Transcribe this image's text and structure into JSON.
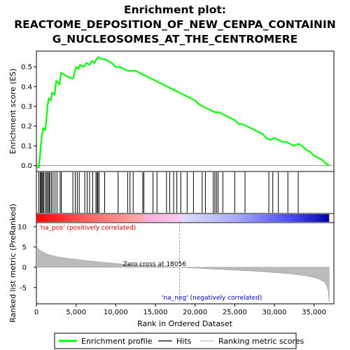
{
  "chart_data": {
    "type": "line",
    "title_line1": "Enrichment plot:",
    "title_line2": "REACTOME_DEPOSITION_OF_NEW_CENPA_CONTAININ",
    "title_line3": "G_NUCLEOSOMES_AT_THE_CENTROMERE",
    "xlabel": "Rank in Ordered Dataset",
    "ylabel_top": "Enrichment score (ES)",
    "ylabel_bottom": "Ranked list metric (PreRanked)",
    "x_ticks": [
      0,
      5000,
      10000,
      15000,
      20000,
      25000,
      30000,
      35000
    ],
    "x_tick_labels": [
      "0",
      "5,000",
      "10,000",
      "15,000",
      "20,000",
      "25,000",
      "30,000",
      "35,000"
    ],
    "xlim": [
      0,
      37500
    ],
    "es_ylim": [
      -0.03,
      0.58
    ],
    "es_y_ticks": [
      0.0,
      0.1,
      0.2,
      0.3,
      0.4,
      0.5
    ],
    "es_y_tick_labels": [
      "0.0",
      "0.1",
      "0.2",
      "0.3",
      "0.4",
      "0.5"
    ],
    "metric_ylim": [
      -9,
      11
    ],
    "metric_y_ticks": [
      10,
      5,
      0,
      -5
    ],
    "metric_y_tick_labels": [
      "10",
      "5",
      "0",
      "-5"
    ],
    "total_genes": 36900,
    "zero_cross": 18056,
    "zero_cross_label": "Zero cross at 18056",
    "pos_label": "'na_pos' (positively correlated)",
    "neg_label": "'na_neg' (negatively correlated)",
    "enrichment_profile": [
      [
        0,
        0.0
      ],
      [
        300,
        -0.01
      ],
      [
        450,
        0.05
      ],
      [
        550,
        0.1
      ],
      [
        700,
        0.15
      ],
      [
        850,
        0.19
      ],
      [
        1100,
        0.18
      ],
      [
        1250,
        0.23
      ],
      [
        1400,
        0.3
      ],
      [
        1550,
        0.34
      ],
      [
        1800,
        0.33
      ],
      [
        2000,
        0.37
      ],
      [
        2300,
        0.36
      ],
      [
        2500,
        0.43
      ],
      [
        2900,
        0.41
      ],
      [
        3100,
        0.47
      ],
      [
        3500,
        0.46
      ],
      [
        4000,
        0.45
      ],
      [
        4600,
        0.44
      ],
      [
        4800,
        0.47
      ],
      [
        5000,
        0.5
      ],
      [
        5300,
        0.49
      ],
      [
        5500,
        0.51
      ],
      [
        6000,
        0.5
      ],
      [
        6300,
        0.52
      ],
      [
        6700,
        0.51
      ],
      [
        7000,
        0.53
      ],
      [
        7300,
        0.52
      ],
      [
        7600,
        0.54
      ],
      [
        7800,
        0.55
      ],
      [
        8200,
        0.54
      ],
      [
        8600,
        0.54
      ],
      [
        9000,
        0.53
      ],
      [
        9500,
        0.52
      ],
      [
        10000,
        0.5
      ],
      [
        10500,
        0.5
      ],
      [
        11000,
        0.49
      ],
      [
        11500,
        0.48
      ],
      [
        12000,
        0.48
      ],
      [
        12500,
        0.48
      ],
      [
        13000,
        0.47
      ],
      [
        13500,
        0.46
      ],
      [
        14000,
        0.45
      ],
      [
        14500,
        0.44
      ],
      [
        15000,
        0.43
      ],
      [
        15500,
        0.42
      ],
      [
        16000,
        0.41
      ],
      [
        16500,
        0.4
      ],
      [
        17000,
        0.39
      ],
      [
        17500,
        0.38
      ],
      [
        18000,
        0.37
      ],
      [
        18500,
        0.36
      ],
      [
        19000,
        0.35
      ],
      [
        19500,
        0.34
      ],
      [
        20000,
        0.33
      ],
      [
        20500,
        0.31
      ],
      [
        21000,
        0.3
      ],
      [
        21500,
        0.29
      ],
      [
        22000,
        0.28
      ],
      [
        22500,
        0.27
      ],
      [
        23000,
        0.27
      ],
      [
        23500,
        0.26
      ],
      [
        24000,
        0.25
      ],
      [
        24500,
        0.24
      ],
      [
        25000,
        0.23
      ],
      [
        25500,
        0.21
      ],
      [
        26000,
        0.21
      ],
      [
        26500,
        0.2
      ],
      [
        27000,
        0.19
      ],
      [
        27500,
        0.18
      ],
      [
        28000,
        0.17
      ],
      [
        28500,
        0.16
      ],
      [
        29000,
        0.14
      ],
      [
        29500,
        0.13
      ],
      [
        30000,
        0.14
      ],
      [
        30500,
        0.13
      ],
      [
        31000,
        0.12
      ],
      [
        31500,
        0.12
      ],
      [
        32000,
        0.11
      ],
      [
        32500,
        0.1
      ],
      [
        33000,
        0.11
      ],
      [
        33500,
        0.1
      ],
      [
        34000,
        0.08
      ],
      [
        34500,
        0.07
      ],
      [
        35000,
        0.05
      ],
      [
        35500,
        0.04
      ],
      [
        36000,
        0.03
      ],
      [
        36500,
        0.01
      ],
      [
        36900,
        0.0
      ]
    ],
    "hits": [
      300,
      480,
      600,
      700,
      820,
      950,
      1150,
      1300,
      1450,
      1600,
      1700,
      1900,
      2100,
      2350,
      2600,
      3000,
      3150,
      4600,
      4900,
      5150,
      5400,
      6100,
      6400,
      6700,
      7100,
      7500,
      7650,
      7750,
      7900,
      8600,
      10300,
      11500,
      11800,
      12200,
      13400,
      13550,
      14700,
      15200,
      16400,
      16800,
      17300,
      17700,
      18200,
      19000,
      19800,
      20900,
      21300,
      22300,
      22500,
      22700,
      22900,
      23500,
      25000,
      26300,
      29300,
      29800,
      30500,
      31700,
      33000
    ],
    "metric_profile": [
      [
        0,
        5.6
      ],
      [
        150,
        4.8
      ],
      [
        400,
        4.2
      ],
      [
        800,
        3.7
      ],
      [
        1500,
        3.1
      ],
      [
        2500,
        2.6
      ],
      [
        4000,
        2.2
      ],
      [
        6000,
        1.7
      ],
      [
        8000,
        1.3
      ],
      [
        10000,
        0.9
      ],
      [
        12000,
        0.6
      ],
      [
        14000,
        0.4
      ],
      [
        16000,
        0.2
      ],
      [
        18056,
        0.0
      ],
      [
        20000,
        -0.2
      ],
      [
        22000,
        -0.4
      ],
      [
        24000,
        -0.6
      ],
      [
        26000,
        -0.8
      ],
      [
        28000,
        -1.0
      ],
      [
        30000,
        -1.3
      ],
      [
        32000,
        -1.6
      ],
      [
        34000,
        -2.1
      ],
      [
        35500,
        -2.8
      ],
      [
        36300,
        -3.6
      ],
      [
        36600,
        -4.5
      ],
      [
        36800,
        -6.0
      ],
      [
        36900,
        -8.5
      ]
    ],
    "legend": [
      {
        "label": "Enrichment profile",
        "color": "#00ff00",
        "style": "line-thick"
      },
      {
        "label": "Hits",
        "color": "#000000",
        "style": "line"
      },
      {
        "label": "Ranking metric scores",
        "color": "#bbbbbb",
        "style": "line"
      }
    ],
    "colors": {
      "profile": "#00ff00",
      "hit": "#000000",
      "metric_fill": "#bbbbbb",
      "zero_line": "#999999",
      "pos_text": "#cc0000",
      "neg_text": "#0000cc"
    }
  }
}
